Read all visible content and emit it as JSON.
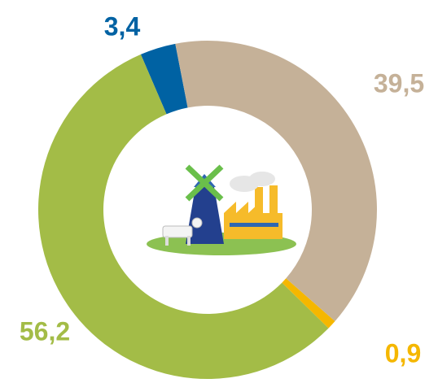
{
  "chart_data": {
    "type": "donut",
    "categories": [
      null,
      null,
      null,
      null
    ],
    "series": [
      {
        "values": [
          39.5,
          0.9,
          56.2,
          3.4
        ],
        "value_labels": [
          "39,5",
          "0,9",
          "56,2",
          "3,4"
        ],
        "colors": [
          "#c5b198",
          "#f5b700",
          "#a3bc47",
          "#0062a3"
        ]
      }
    ]
  }
}
